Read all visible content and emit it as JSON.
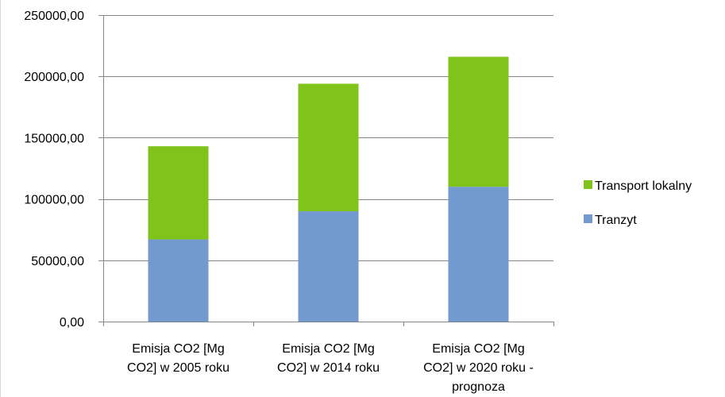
{
  "chart_data": {
    "type": "bar",
    "stacked": true,
    "categories": [
      [
        "Emisja CO2 [Mg",
        "CO2] w 2005 roku"
      ],
      [
        "Emisja CO2 [Mg",
        "CO2] w 2014 roku"
      ],
      [
        "Emisja CO2 [Mg",
        "CO2] w 2020 roku -",
        "prognoza"
      ]
    ],
    "series": [
      {
        "name": "Tranzyt",
        "color": "#729ACF",
        "values": [
          67000,
          90000,
          110000
        ]
      },
      {
        "name": "Transport lokalny",
        "color": "#7FC31B",
        "values": [
          76000,
          104000,
          106000
        ]
      }
    ],
    "ylim": [
      0,
      250000
    ],
    "yticks": [
      0,
      50000,
      100000,
      150000,
      200000,
      250000
    ],
    "ytick_labels": [
      "0,00",
      "50000,00",
      "100000,00",
      "150000,00",
      "200000,00",
      "250000,00"
    ],
    "grid": true,
    "legend": "right",
    "legend_order": [
      "Transport lokalny",
      "Tranzyt"
    ]
  }
}
